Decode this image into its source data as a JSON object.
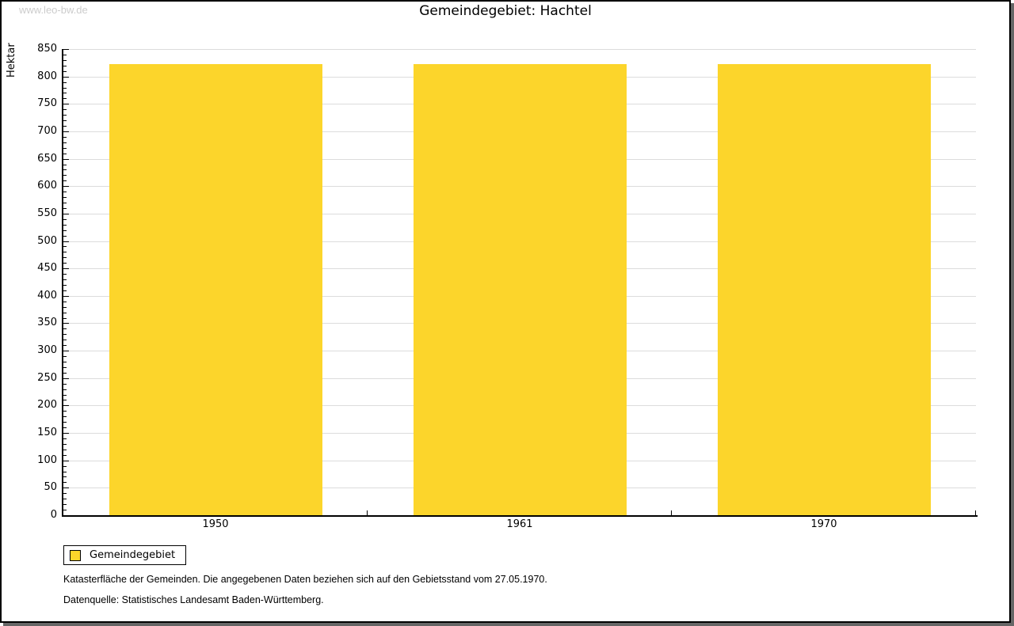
{
  "watermark": "www.leo-bw.de",
  "chart_data": {
    "type": "bar",
    "title": "Gemeindegebiet: Hachtel",
    "ylabel": "Hektar",
    "xlabel": "",
    "categories": [
      "1950",
      "1961",
      "1970"
    ],
    "series": [
      {
        "name": "Gemeindegebiet",
        "color": "#FCD52B",
        "values": [
          822,
          822,
          822
        ]
      }
    ],
    "ylim": [
      0,
      850
    ],
    "ytick_major": 50,
    "ytick_minor": 10,
    "grid": true,
    "legend_position": "bottom-left"
  },
  "colors": {
    "bar": "#FCD52B",
    "gridline": "#DCDCDC",
    "axis": "#000000",
    "watermark": "#CCCCCC",
    "frame_shadow": "#666666"
  },
  "footnotes": [
    "Katasterfläche der Gemeinden. Die angegebenen Daten beziehen sich auf den Gebietsstand vom 27.05.1970.",
    "Datenquelle: Statistisches Landesamt Baden-Württemberg."
  ]
}
